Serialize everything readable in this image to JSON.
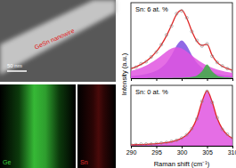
{
  "chart_data": [
    {
      "type": "line",
      "annotation": "Sn: 6 at. %",
      "ylabel": "Intensity (a.u.)",
      "x": [
        290,
        291,
        292,
        293,
        294,
        295,
        296,
        297,
        298,
        299,
        300,
        301,
        302,
        303,
        304,
        305,
        306,
        307,
        308,
        309,
        310
      ],
      "series": [
        {
          "type": "area",
          "color": "#7b4fe0",
          "values": [
            0.032,
            0.039,
            0.049,
            0.062,
            0.081,
            0.11,
            0.154,
            0.225,
            0.335,
            0.474,
            0.55,
            0.474,
            0.335,
            0.225,
            0.154,
            0.11,
            0.081,
            0.062,
            0.049,
            0.039,
            0.032
          ]
        },
        {
          "type": "area",
          "color": "#e055e0",
          "values": [
            0.106,
            0.126,
            0.152,
            0.184,
            0.225,
            0.274,
            0.331,
            0.388,
            0.433,
            0.45,
            0.433,
            0.388,
            0.331,
            0.274,
            0.225,
            0.184,
            0.152,
            0.126,
            0.106,
            0.09,
            0.077
          ]
        },
        {
          "type": "area",
          "color": "#3cb043",
          "values": [
            0.001,
            0.001,
            0.001,
            0.001,
            0.002,
            0.002,
            0.002,
            0.003,
            0.004,
            0.005,
            0.008,
            0.012,
            0.02,
            0.04,
            0.1,
            0.2,
            0.1,
            0.04,
            0.02,
            0.012,
            0.008
          ]
        },
        {
          "type": "line",
          "color": "#e02828",
          "values": [
            0.139,
            0.166,
            0.202,
            0.247,
            0.308,
            0.386,
            0.487,
            0.616,
            0.772,
            0.929,
            0.991,
            0.874,
            0.686,
            0.539,
            0.479,
            0.494,
            0.333,
            0.228,
            0.175,
            0.141,
            0.117
          ]
        },
        {
          "type": "scatter",
          "color": "#8c8c8c",
          "marker": "circle",
          "values": [
            0.15,
            0.16,
            0.21,
            0.24,
            0.31,
            0.38,
            0.49,
            0.63,
            0.76,
            0.94,
            0.98,
            0.88,
            0.68,
            0.55,
            0.47,
            0.5,
            0.32,
            0.23,
            0.18,
            0.14,
            0.11
          ]
        }
      ],
      "xlim": [
        290,
        310
      ],
      "xticks": [
        290,
        295,
        300,
        305,
        310
      ],
      "ylim": [
        0,
        1.1
      ],
      "tick_labels": false
    },
    {
      "type": "line",
      "annotation": "Sn: 0 at. %",
      "xlabel": "Raman shift (cm⁻¹)",
      "x": [
        290,
        291,
        292,
        293,
        294,
        295,
        296,
        297,
        298,
        299,
        300,
        301,
        302,
        303,
        304,
        305,
        306,
        307,
        308,
        309,
        310
      ],
      "series": [
        {
          "type": "area",
          "color": "#e055e0",
          "values": [
            0.017,
            0.02,
            0.023,
            0.027,
            0.032,
            0.038,
            0.047,
            0.059,
            0.075,
            0.1,
            0.138,
            0.2,
            0.308,
            0.5,
            0.8,
            1,
            0.8,
            0.5,
            0.308,
            0.2,
            0.138
          ]
        },
        {
          "type": "line",
          "color": "#e02828",
          "values": [
            0.017,
            0.02,
            0.023,
            0.027,
            0.032,
            0.038,
            0.047,
            0.059,
            0.075,
            0.1,
            0.138,
            0.2,
            0.308,
            0.5,
            0.8,
            1,
            0.8,
            0.5,
            0.308,
            0.2,
            0.138
          ]
        },
        {
          "type": "scatter",
          "color": "#8c8c8c",
          "marker": "circle",
          "values": [
            0.02,
            0.02,
            0.03,
            0.03,
            0.03,
            0.04,
            0.05,
            0.06,
            0.08,
            0.1,
            0.14,
            0.2,
            0.31,
            0.49,
            0.81,
            0.99,
            0.79,
            0.51,
            0.3,
            0.21,
            0.14
          ]
        }
      ],
      "xlim": [
        290,
        310
      ],
      "xticks": [
        290,
        295,
        300,
        305,
        310
      ],
      "ylim": [
        0,
        1.1
      ],
      "tick_labels": "x"
    }
  ],
  "images": {
    "tem": {
      "scale_bar": "50 nm",
      "label": "GeSn nanowire"
    },
    "maps": [
      {
        "label": "Ge"
      },
      {
        "label": "Sn"
      }
    ]
  }
}
